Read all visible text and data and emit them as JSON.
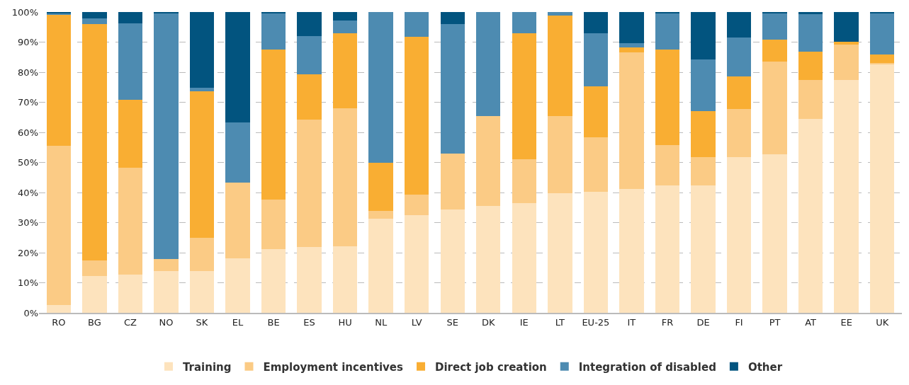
{
  "chart_data": {
    "type": "bar",
    "stacked": true,
    "categories": [
      "RO",
      "BG",
      "CZ",
      "NO",
      "SK",
      "EL",
      "BE",
      "ES",
      "HU",
      "NL",
      "LV",
      "SE",
      "DK",
      "IE",
      "LT",
      "EU-25",
      "IT",
      "FR",
      "DE",
      "FI",
      "PT",
      "AT",
      "EE",
      "UK"
    ],
    "series": [
      {
        "name": "Training",
        "color": "#fde3bd",
        "values": [
          2.5,
          12.2,
          12.7,
          13.8,
          13.8,
          18.1,
          21.2,
          21.9,
          22.1,
          31.4,
          32.5,
          34.4,
          35.5,
          36.5,
          39.7,
          40.2,
          41.2,
          42.4,
          42.4,
          51.7,
          52.8,
          64.4,
          77.3,
          82.6
        ]
      },
      {
        "name": "Employment incentives",
        "color": "#fbcb85",
        "values": [
          53.1,
          5.1,
          35.5,
          4,
          11.2,
          25.2,
          16.5,
          42.4,
          45.8,
          2.6,
          6.7,
          18.6,
          30,
          14.6,
          25.6,
          18.2,
          45.4,
          13.4,
          9.4,
          16,
          30.7,
          13,
          11.9,
          0.5
        ]
      },
      {
        "name": "Direct job creation",
        "color": "#f9ae33",
        "values": [
          43.6,
          78.7,
          22.6,
          0,
          48.6,
          0,
          49.9,
          14.9,
          25,
          16,
          52.5,
          0,
          0,
          41.8,
          33.6,
          16.8,
          1.7,
          31.8,
          15.2,
          10.9,
          7.4,
          9.5,
          1,
          2.9
        ]
      },
      {
        "name": "Integration of disabled",
        "color": "#4d8bb1",
        "values": [
          0.3,
          2,
          25.4,
          81.7,
          1.2,
          20.1,
          12,
          12.9,
          4.3,
          50,
          8.3,
          43,
          34.5,
          7.1,
          1.1,
          17.7,
          1.4,
          12,
          17.3,
          12.9,
          8.7,
          12.4,
          0,
          13.6
        ]
      },
      {
        "name": "Other",
        "color": "#02547f",
        "values": [
          0.5,
          2,
          3.8,
          0.5,
          25.2,
          36.6,
          0.4,
          7.9,
          2.8,
          0,
          0,
          4,
          0,
          0,
          0,
          7.1,
          10.3,
          0.4,
          15.7,
          8.5,
          0.4,
          0.7,
          9.8,
          0.4
        ]
      }
    ],
    "ylim": [
      0,
      100
    ],
    "yticks": [
      {
        "value": 0,
        "label": "0%"
      },
      {
        "value": 10,
        "label": "10%"
      },
      {
        "value": 20,
        "label": "20%"
      },
      {
        "value": 30,
        "label": "30%"
      },
      {
        "value": 40,
        "label": "40%"
      },
      {
        "value": 50,
        "label": "50%"
      },
      {
        "value": 60,
        "label": "60%"
      },
      {
        "value": 70,
        "label": "70%"
      },
      {
        "value": 80,
        "label": "80%"
      },
      {
        "value": 90,
        "label": "90%"
      },
      {
        "value": 100,
        "label": "100%"
      }
    ],
    "grid": "y",
    "legend": "bottom"
  }
}
